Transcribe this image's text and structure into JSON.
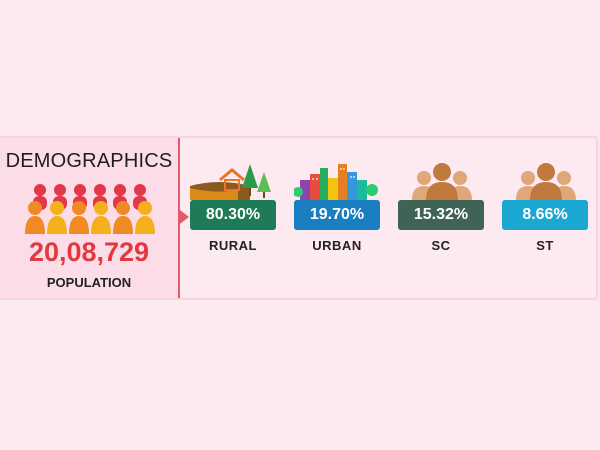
{
  "demographics": {
    "title": "DEMOGRAPHICS",
    "population_value": "20,08,729",
    "population_label": "POPULATION",
    "icon": "people-group-icon",
    "accent_color": "#e2383f"
  },
  "stats": [
    {
      "value": "80.30%",
      "label": "RURAL",
      "icon": "rural-landscape-icon",
      "color": "#1f7a58"
    },
    {
      "value": "19.70%",
      "label": "URBAN",
      "icon": "city-buildings-icon",
      "color": "#1a7fc0"
    },
    {
      "value": "15.32%",
      "label": "SC",
      "icon": "people-group-icon",
      "color": "#3f6355"
    },
    {
      "value": "8.66%",
      "label": "ST",
      "icon": "people-group-icon",
      "color": "#1aa8d3"
    }
  ]
}
